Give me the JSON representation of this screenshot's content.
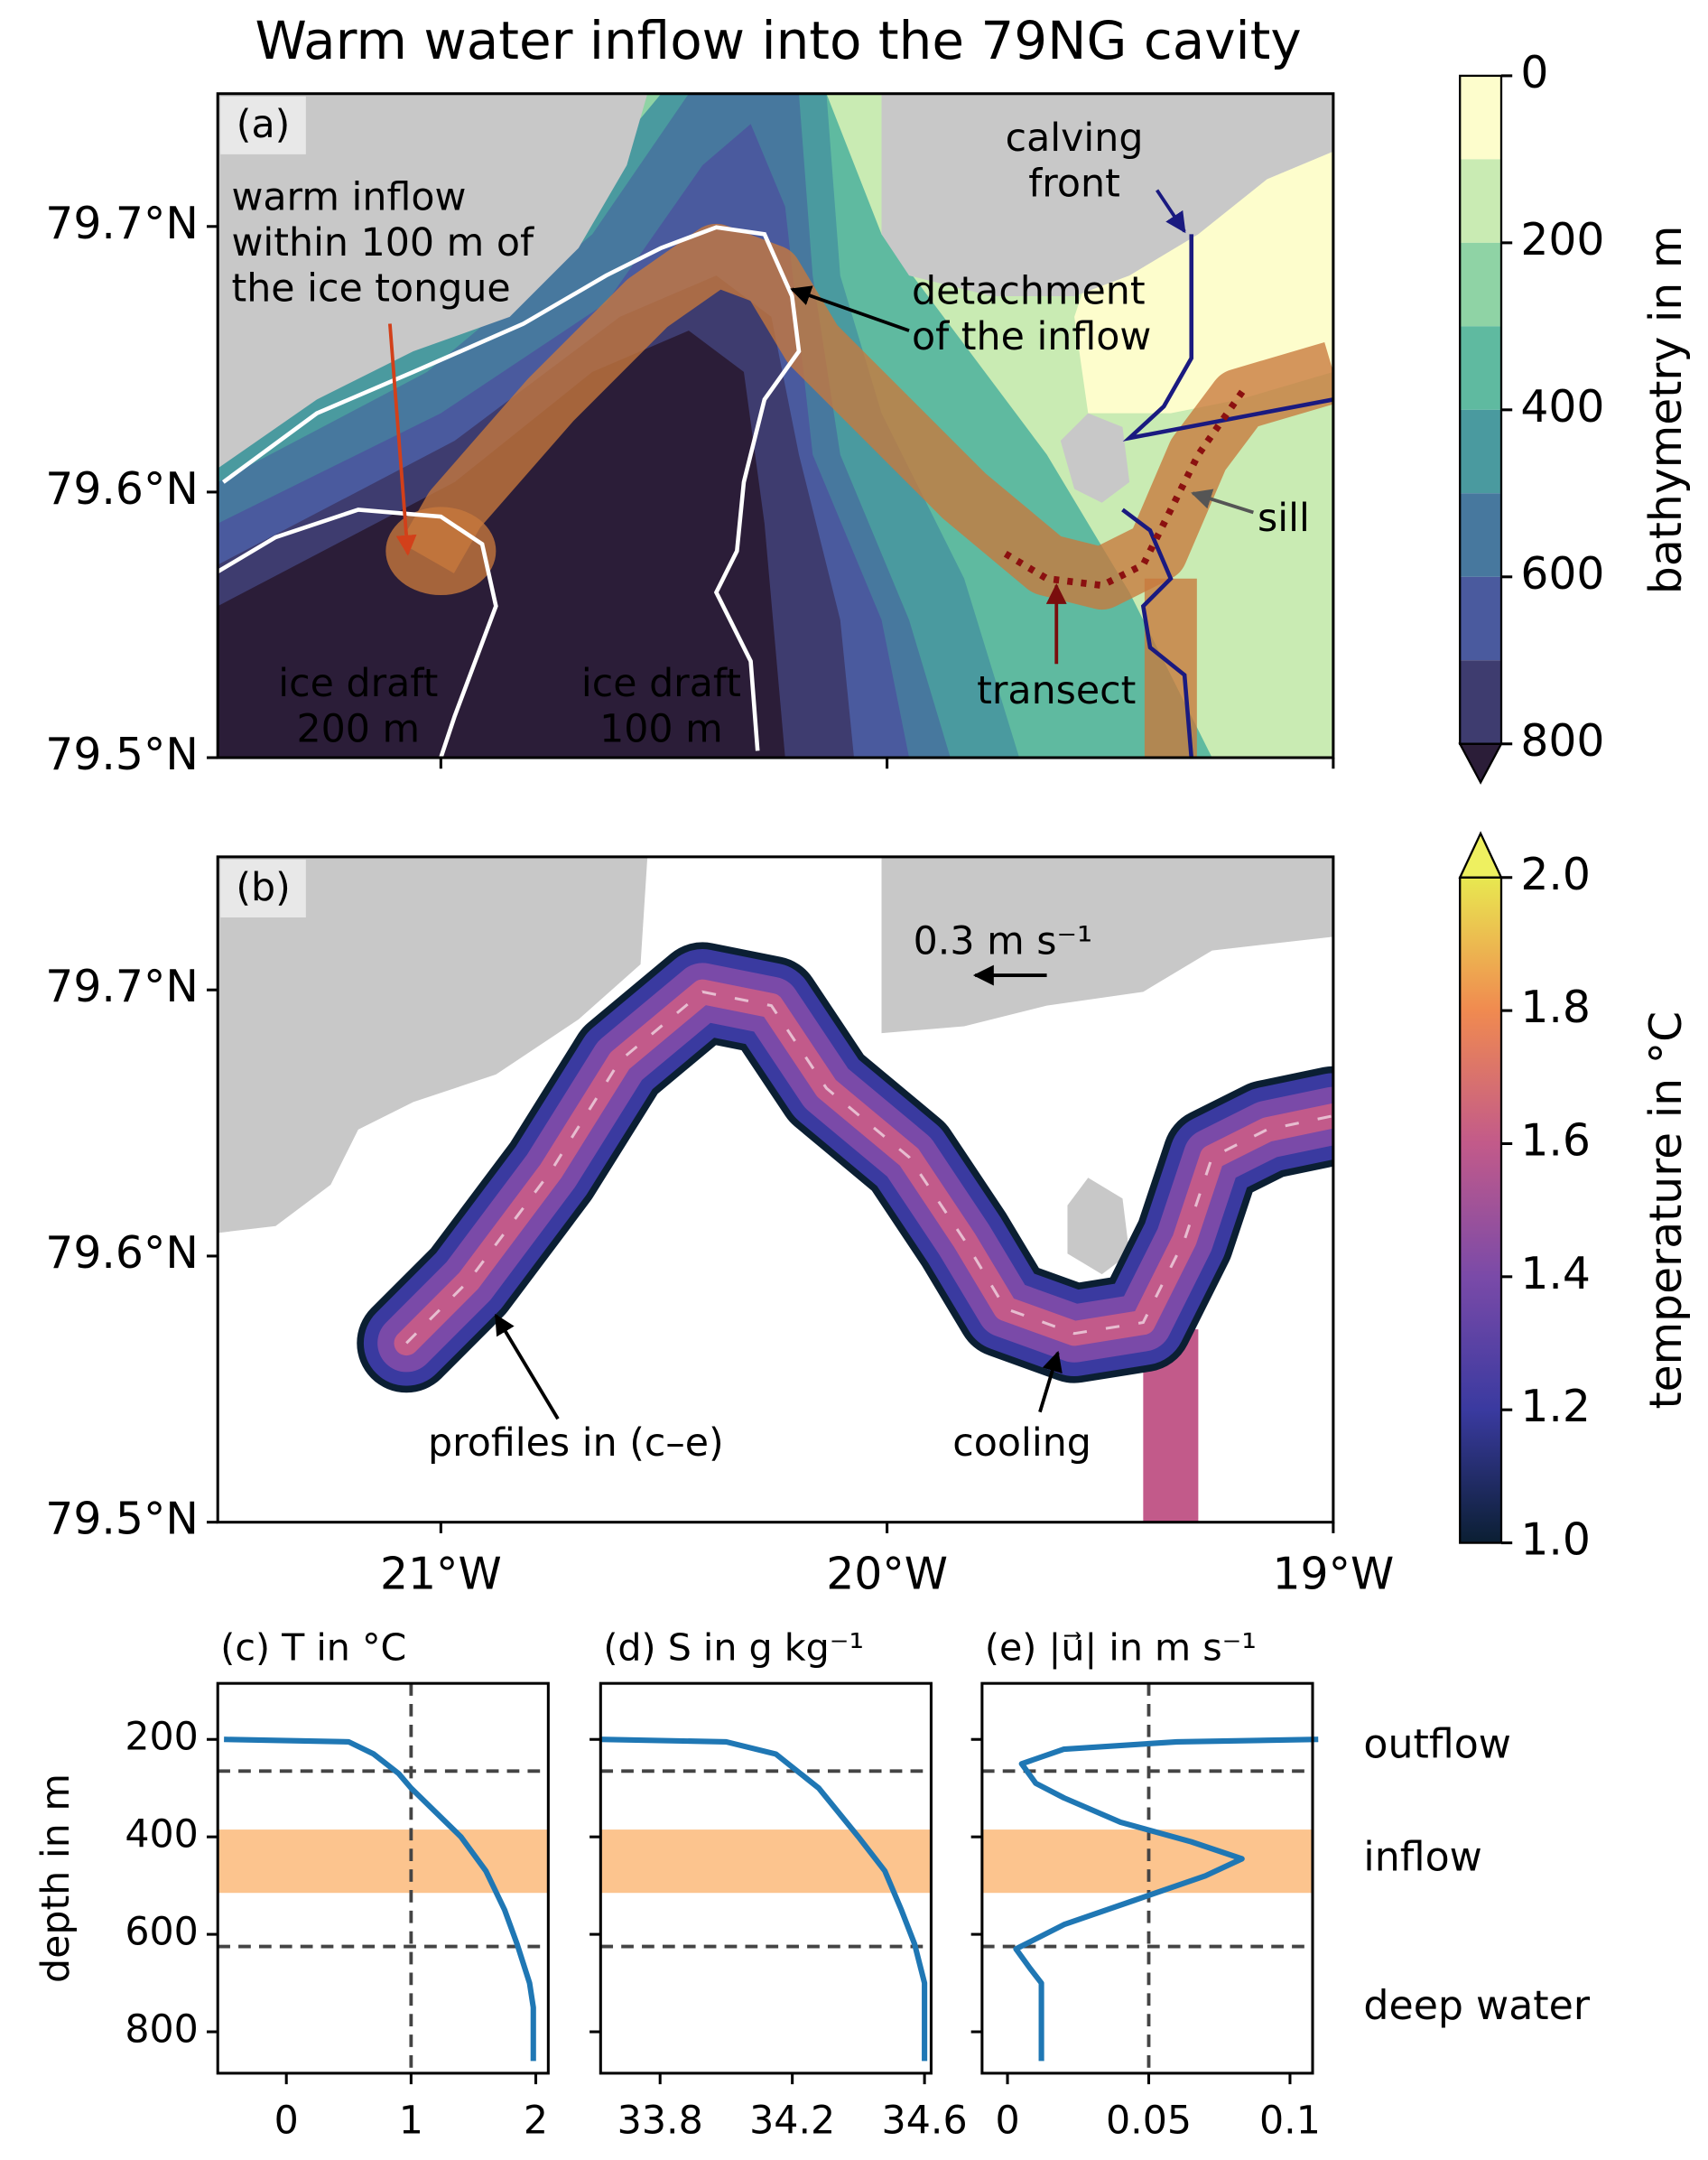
{
  "figure_title": "Warm water inflow into the 79NG cavity",
  "chart_data": [
    {
      "type": "map",
      "label": "(a)",
      "xlim": [
        -21.5,
        -19
      ],
      "ylim": [
        79.5,
        79.75
      ],
      "xticks": [
        -21,
        -20,
        -19
      ],
      "show_xticklabels": false,
      "yticks": [
        {
          "value": 79.5,
          "label": "79.5°N"
        },
        {
          "value": 79.6,
          "label": "79.6°N"
        },
        {
          "value": 79.7,
          "label": "79.7°N"
        }
      ],
      "colorbar": {
        "label": "bathymetry in m",
        "clim": [
          0,
          800
        ],
        "ticks": [
          0,
          200,
          400,
          600,
          800
        ],
        "reverse": true,
        "extend": "max",
        "levels": [
          0,
          100,
          200,
          300,
          400,
          500,
          600,
          700,
          800
        ],
        "colors": [
          "#fdfdcc",
          "#c9ebb3",
          "#8fd3a5",
          "#5fbaa0",
          "#4a9a9f",
          "#47789e",
          "#4a5a9e",
          "#3e3c6f"
        ],
        "over": "#2b1d38"
      },
      "annotations": [
        {
          "lines": [
            "warm inflow",
            "within 100 m of",
            "the ice tongue"
          ],
          "color": "#d2401a"
        },
        {
          "lines": [
            "calving",
            "front"
          ],
          "color": "#1a1a80"
        },
        {
          "lines": [
            "detachment",
            "of the inflow"
          ],
          "color": "#000000"
        },
        {
          "lines": [
            "sill"
          ],
          "color": "#555555"
        },
        {
          "lines": [
            "transect"
          ],
          "color": "#7a0d0d"
        },
        {
          "lines": [
            "ice draft",
            "200 m"
          ],
          "color": "#ffffff"
        },
        {
          "lines": [
            "ice draft",
            "100 m"
          ],
          "color": "#ffffff"
        }
      ]
    },
    {
      "type": "map",
      "label": "(b)",
      "xlim": [
        -21.5,
        -19
      ],
      "ylim": [
        79.5,
        79.75
      ],
      "xticks": [
        {
          "value": -21,
          "label": "21°W"
        },
        {
          "value": -20,
          "label": "20°W"
        },
        {
          "value": -19,
          "label": "19°W"
        }
      ],
      "show_xticklabels": true,
      "yticks": [
        {
          "value": 79.5,
          "label": "79.5°N"
        },
        {
          "value": 79.6,
          "label": "79.6°N"
        },
        {
          "value": 79.7,
          "label": "79.7°N"
        }
      ],
      "colorbar": {
        "label": "temperature in °C",
        "clim": [
          1.0,
          2.0
        ],
        "extend": "max",
        "ticks": [
          {
            "value": 1.0,
            "label": "1.0"
          },
          1.2,
          1.4,
          1.6,
          1.8,
          {
            "value": 2.0,
            "label": "2.0"
          }
        ],
        "colors": [
          "#0b1f33",
          "#3a3aa0",
          "#7a4aa8",
          "#c25a8a",
          "#f08a50",
          "#e8e850"
        ],
        "over": "#eef060"
      },
      "annotations": [
        {
          "lines": [
            "profiles in (c–e)"
          ],
          "color": "#000000"
        },
        {
          "lines": [
            "cooling"
          ],
          "color": "#000000"
        },
        {
          "lines": [
            "0.3 m s⁻¹"
          ],
          "color": "#000000"
        }
      ]
    },
    {
      "type": "line",
      "title": "(c) T in °C",
      "ylabel": "depth in m",
      "xlim": [
        -0.55,
        2.1
      ],
      "xticks": [
        0,
        1,
        2
      ],
      "ylim": [
        885,
        85
      ],
      "yticks": [
        200,
        400,
        600,
        800
      ],
      "show_yticklabels": true,
      "hlines": [
        265,
        625
      ],
      "vline": 1,
      "band": [
        385,
        515
      ],
      "band_color": "#fcc48e",
      "series": [
        {
          "color": "#1f77b4",
          "values": [
            -0.5,
            0.5,
            0.7,
            0.9,
            1.0,
            1.2,
            1.4,
            1.6,
            1.75,
            1.85,
            1.95,
            1.98,
            1.98
          ],
          "depth": [
            200,
            205,
            230,
            270,
            300,
            350,
            400,
            470,
            550,
            620,
            700,
            750,
            860
          ]
        }
      ]
    },
    {
      "type": "line",
      "title": "(d) S in g kg⁻¹",
      "xlim": [
        33.62,
        34.62
      ],
      "xticks": [
        33.8,
        34.2,
        34.6
      ],
      "ylim": [
        885,
        85
      ],
      "yticks": [
        200,
        400,
        600,
        800
      ],
      "show_yticklabels": false,
      "hlines": [
        265,
        625
      ],
      "band": [
        385,
        515
      ],
      "band_color": "#fcc48e",
      "series": [
        {
          "color": "#1f77b4",
          "values": [
            33.62,
            34.0,
            34.15,
            34.28,
            34.4,
            34.48,
            34.53,
            34.57,
            34.6,
            34.6
          ],
          "depth": [
            200,
            205,
            230,
            300,
            400,
            470,
            550,
            620,
            700,
            860
          ]
        }
      ]
    },
    {
      "type": "line",
      "title": "(e) |u⃗| in m s⁻¹",
      "xlim": [
        -0.009,
        0.108
      ],
      "xticks": [
        0,
        0.05,
        0.1
      ],
      "ylim": [
        885,
        85
      ],
      "yticks": [
        200,
        400,
        600,
        800
      ],
      "show_yticklabels": false,
      "hlines": [
        265,
        625
      ],
      "vline": 0.05,
      "band": [
        385,
        515
      ],
      "band_color": "#fcc48e",
      "layer_labels": [
        "outflow",
        "inflow",
        "deep water"
      ],
      "series": [
        {
          "color": "#1f77b4",
          "values": [
            0.11,
            0.06,
            0.02,
            0.005,
            0.01,
            0.02,
            0.04,
            0.065,
            0.083,
            0.07,
            0.045,
            0.02,
            0.003,
            0.008,
            0.012,
            0.012
          ],
          "depth": [
            200,
            205,
            220,
            250,
            290,
            320,
            370,
            410,
            445,
            480,
            530,
            580,
            630,
            670,
            700,
            860
          ]
        }
      ]
    }
  ]
}
